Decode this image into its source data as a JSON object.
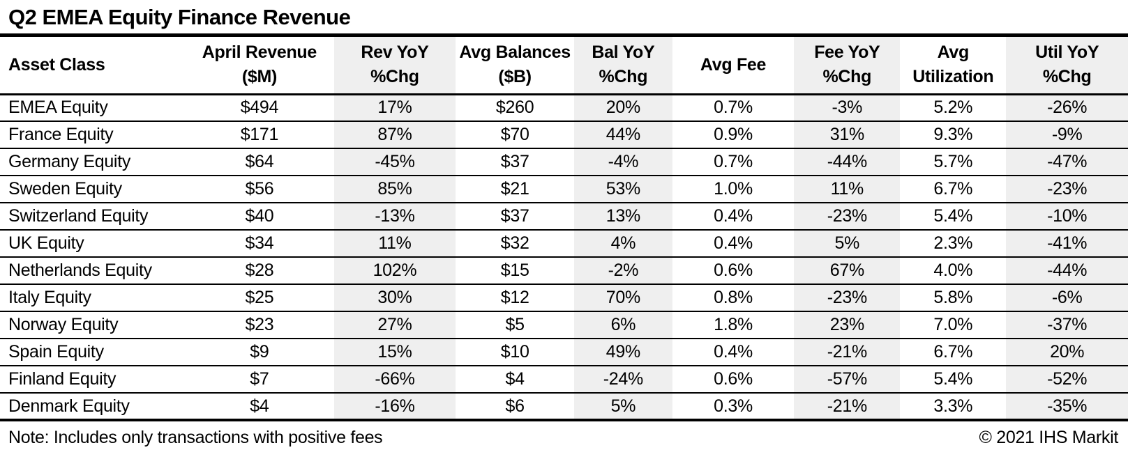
{
  "title": "Q2 EMEA Equity Finance Revenue",
  "footer": {
    "note": "Note: Includes only transactions with positive fees",
    "copyright": "© 2021 IHS Markit"
  },
  "colors": {
    "shaded_column": "#efefef",
    "text": "#000000",
    "background": "#ffffff",
    "rule": "#000000"
  },
  "chart_data": {
    "type": "table",
    "title": "Q2 EMEA Equity Finance Revenue",
    "columns": [
      "Asset Class",
      "April Revenue ($M)",
      "Rev YoY %Chg",
      "Avg Balances ($B)",
      "Bal YoY %Chg",
      "Avg Fee",
      "Fee YoY %Chg",
      "Avg Utilization",
      "Util YoY %Chg"
    ],
    "header_lines": [
      [
        "Asset Class"
      ],
      [
        "April Revenue",
        "($M)"
      ],
      [
        "Rev YoY",
        "%Chg"
      ],
      [
        "Avg Balances",
        "($B)"
      ],
      [
        "Bal YoY",
        "%Chg"
      ],
      [
        "Avg Fee"
      ],
      [
        "Fee YoY",
        "%Chg"
      ],
      [
        "Avg",
        "Utilization"
      ],
      [
        "Util YoY",
        "%Chg"
      ]
    ],
    "shaded_columns": [
      2,
      4,
      6,
      8
    ],
    "rows": [
      [
        "EMEA Equity",
        "$494",
        "17%",
        "$260",
        "20%",
        "0.7%",
        "-3%",
        "5.2%",
        "-26%"
      ],
      [
        "France Equity",
        "$171",
        "87%",
        "$70",
        "44%",
        "0.9%",
        "31%",
        "9.3%",
        "-9%"
      ],
      [
        "Germany Equity",
        "$64",
        "-45%",
        "$37",
        "-4%",
        "0.7%",
        "-44%",
        "5.7%",
        "-47%"
      ],
      [
        "Sweden Equity",
        "$56",
        "85%",
        "$21",
        "53%",
        "1.0%",
        "11%",
        "6.7%",
        "-23%"
      ],
      [
        "Switzerland Equity",
        "$40",
        "-13%",
        "$37",
        "13%",
        "0.4%",
        "-23%",
        "5.4%",
        "-10%"
      ],
      [
        "UK Equity",
        "$34",
        "11%",
        "$32",
        "4%",
        "0.4%",
        "5%",
        "2.3%",
        "-41%"
      ],
      [
        "Netherlands Equity",
        "$28",
        "102%",
        "$15",
        "-2%",
        "0.6%",
        "67%",
        "4.0%",
        "-44%"
      ],
      [
        "Italy Equity",
        "$25",
        "30%",
        "$12",
        "70%",
        "0.8%",
        "-23%",
        "5.8%",
        "-6%"
      ],
      [
        "Norway Equity",
        "$23",
        "27%",
        "$5",
        "6%",
        "1.8%",
        "23%",
        "7.0%",
        "-37%"
      ],
      [
        "Spain Equity",
        "$9",
        "15%",
        "$10",
        "49%",
        "0.4%",
        "-21%",
        "6.7%",
        "20%"
      ],
      [
        "Finland Equity",
        "$7",
        "-66%",
        "$4",
        "-24%",
        "0.6%",
        "-57%",
        "5.4%",
        "-52%"
      ],
      [
        "Denmark Equity",
        "$4",
        "-16%",
        "$6",
        "5%",
        "0.3%",
        "-21%",
        "3.3%",
        "-35%"
      ]
    ]
  }
}
